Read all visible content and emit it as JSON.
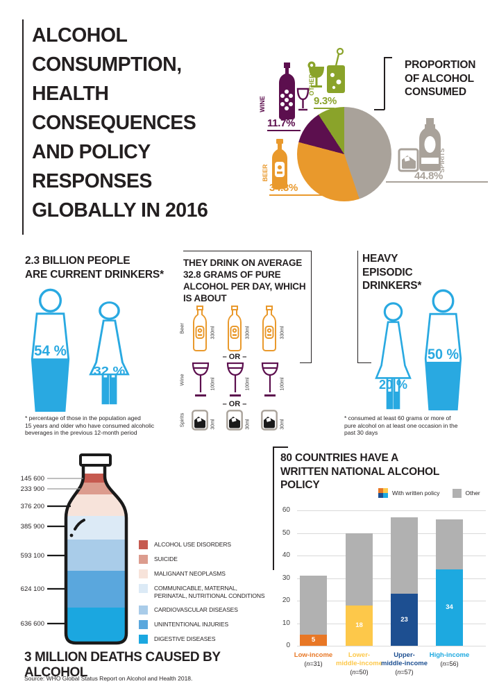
{
  "colors": {
    "text": "#231f20",
    "people_blue": "#29a9e1",
    "pie": {
      "spirits": "#a9a29a",
      "beer": "#e9992c",
      "wine": "#5c0f4e",
      "other": "#8aa32a"
    },
    "policy": {
      "low": "#e87725",
      "lower_middle": "#fdc84a",
      "upper_middle": "#1d4f91",
      "high": "#1da9e0",
      "other": "#b1b1b1"
    }
  },
  "title_block": {
    "title": "ALCOHOL\nCONSUMPTION,\nHEALTH\nCONSEQUENCES\nAND POLICY\nRESPONSES\nGLOBALLY IN 2016"
  },
  "pie_section": {
    "heading": "PROPORTION\nOF ALCOHOL\nCONSUMED",
    "labels": {
      "wine": "WINE",
      "other": "OTHER",
      "beer": "BEER",
      "spirits": "SPIRITS"
    },
    "percents": {
      "wine": "11.7%",
      "other": "9.3%",
      "beer": "34.3%",
      "spirits": "44.8%"
    }
  },
  "current_drinkers": {
    "heading": "2.3 BILLION PEOPLE\nARE CURRENT DRINKERS*",
    "male_pct": "54 %",
    "female_pct": "32 %",
    "male_value": 54,
    "female_value": 32,
    "footnote": "*  percentage of those in the population aged\n15 years and older who have consumed alcoholic\nbeverages in the previous 12-month period"
  },
  "average_consumption": {
    "heading": "THEY DRINK ON AVERAGE\n32.8 GRAMS OF PURE\nALCOHOL PER DAY, WHICH\nIS ABOUT",
    "separator": "– OR –",
    "rows": [
      {
        "name": "Beer",
        "volume": "330ml",
        "count": 3,
        "color": "#e9992c"
      },
      {
        "name": "Wine",
        "volume": "100ml",
        "count": 3,
        "color": "#5c0f4e"
      },
      {
        "name": "Spirits",
        "volume": "30ml",
        "count": 3,
        "color": "#a9a29a"
      }
    ]
  },
  "heavy_episodic": {
    "heading": "HEAVY\nEPISODIC\nDRINKERS*",
    "female_pct": "20 %",
    "male_pct": "50 %",
    "female_value": 20,
    "male_value": 50,
    "footnote": "*  consumed at least 60 grams or more of\npure alcohol on at least one occasion in the\npast 30 days"
  },
  "deaths": {
    "title": "3 MILLION DEATHS CAUSED BY ALCOHOL",
    "ticks": [
      "145 600",
      "233 900",
      "376 200",
      "385 900",
      "593 100",
      "624 100",
      "636 600"
    ],
    "legend": [
      {
        "label": "ALCOHOL USE DISORDERS",
        "color": "#c65a50"
      },
      {
        "label": "SUICIDE",
        "color": "#dc9c8e"
      },
      {
        "label": "MALIGNANT NEOPLASMS",
        "color": "#f7e3da"
      },
      {
        "label": "COMMUNICABLE, MATERNAL,\nPERINATAL, NUTRITIONAL CONDITIONS",
        "color": "#dceaf6"
      },
      {
        "label": "CARDIOVASCULAR DISEASES",
        "color": "#a9cce9"
      },
      {
        "label": "UNINTENTIONAL INJURIES",
        "color": "#5aa7dd"
      },
      {
        "label": "DIGESTIVE DISEASES",
        "color": "#1ba7e0"
      }
    ]
  },
  "policy_chart": {
    "heading": "80 COUNTRIES HAVE A\nWRITTEN NATIONAL ALCOHOL\nPOLICY",
    "legend": {
      "written": "With written policy",
      "other": "Other",
      "other_color": "#b1b1b1",
      "quad_colors": [
        "#e87725",
        "#fdc84a",
        "#1d4f91",
        "#1da9e0"
      ]
    },
    "y_ticks": [
      0,
      10,
      20,
      30,
      40,
      50,
      60
    ],
    "bars": [
      {
        "label_lines": [
          "Low-income"
        ],
        "n": 31,
        "written": 5,
        "total": 31,
        "color": "#e87725"
      },
      {
        "label_lines": [
          "Lower-",
          "middle-income"
        ],
        "n": 50,
        "written": 18,
        "total": 50,
        "color": "#fdc84a"
      },
      {
        "label_lines": [
          "Upper-",
          "middle-income"
        ],
        "n": 57,
        "written": 23,
        "total": 57,
        "color": "#1d4f91"
      },
      {
        "label_lines": [
          "High-income"
        ],
        "n": 56,
        "written": 34,
        "total": 56,
        "color": "#1da9e0"
      }
    ]
  },
  "source": "Source: WHO Global Status Report on Alcohol and Health 2018.",
  "chart_data": [
    {
      "type": "pie",
      "title": "PROPORTION OF ALCOHOL CONSUMED",
      "labels": [
        "SPIRITS",
        "BEER",
        "WINE",
        "OTHER"
      ],
      "values": [
        44.8,
        34.3,
        11.7,
        9.3
      ],
      "colors": [
        "#a9a29a",
        "#e9992c",
        "#5c0f4e",
        "#8aa32a"
      ],
      "start_angle_deg": 0,
      "direction": "clockwise",
      "legend_position": "around"
    },
    {
      "type": "bar",
      "subtype": "stacked-bottle-pictogram",
      "title": "3 MILLION DEATHS CAUSED BY ALCOHOL",
      "categories": [
        "ALCOHOL USE DISORDERS",
        "SUICIDE",
        "MALIGNANT NEOPLASMS",
        "COMMUNICABLE, MATERNAL, PERINATAL, NUTRITIONAL CONDITIONS",
        "CARDIOVASCULAR DISEASES",
        "UNINTENTIONAL INJURIES",
        "DIGESTIVE DISEASES"
      ],
      "values": [
        145600,
        233900,
        376200,
        385900,
        593100,
        624100,
        636600
      ],
      "colors": [
        "#c65a50",
        "#dc9c8e",
        "#f7e3da",
        "#dceaf6",
        "#a9cce9",
        "#5aa7dd",
        "#1ba7e0"
      ],
      "legend_position": "right"
    },
    {
      "type": "bar",
      "stacked": true,
      "title": "80 COUNTRIES HAVE A WRITTEN NATIONAL ALCOHOL POLICY",
      "categories": [
        "Low-income (n=31)",
        "Lower-middle-income (n=50)",
        "Upper-middle-income (n=57)",
        "High-income (n=56)"
      ],
      "series": [
        {
          "name": "With written policy",
          "values": [
            5,
            18,
            23,
            34
          ],
          "colors": [
            "#e87725",
            "#fdc84a",
            "#1d4f91",
            "#1da9e0"
          ]
        },
        {
          "name": "Other",
          "values": [
            26,
            32,
            34,
            22
          ],
          "color": "#b1b1b1"
        }
      ],
      "ylim": [
        0,
        60
      ],
      "yticks": [
        0,
        10,
        20,
        30,
        40,
        50,
        60
      ],
      "grid": true,
      "legend_position": "top-right"
    }
  ]
}
